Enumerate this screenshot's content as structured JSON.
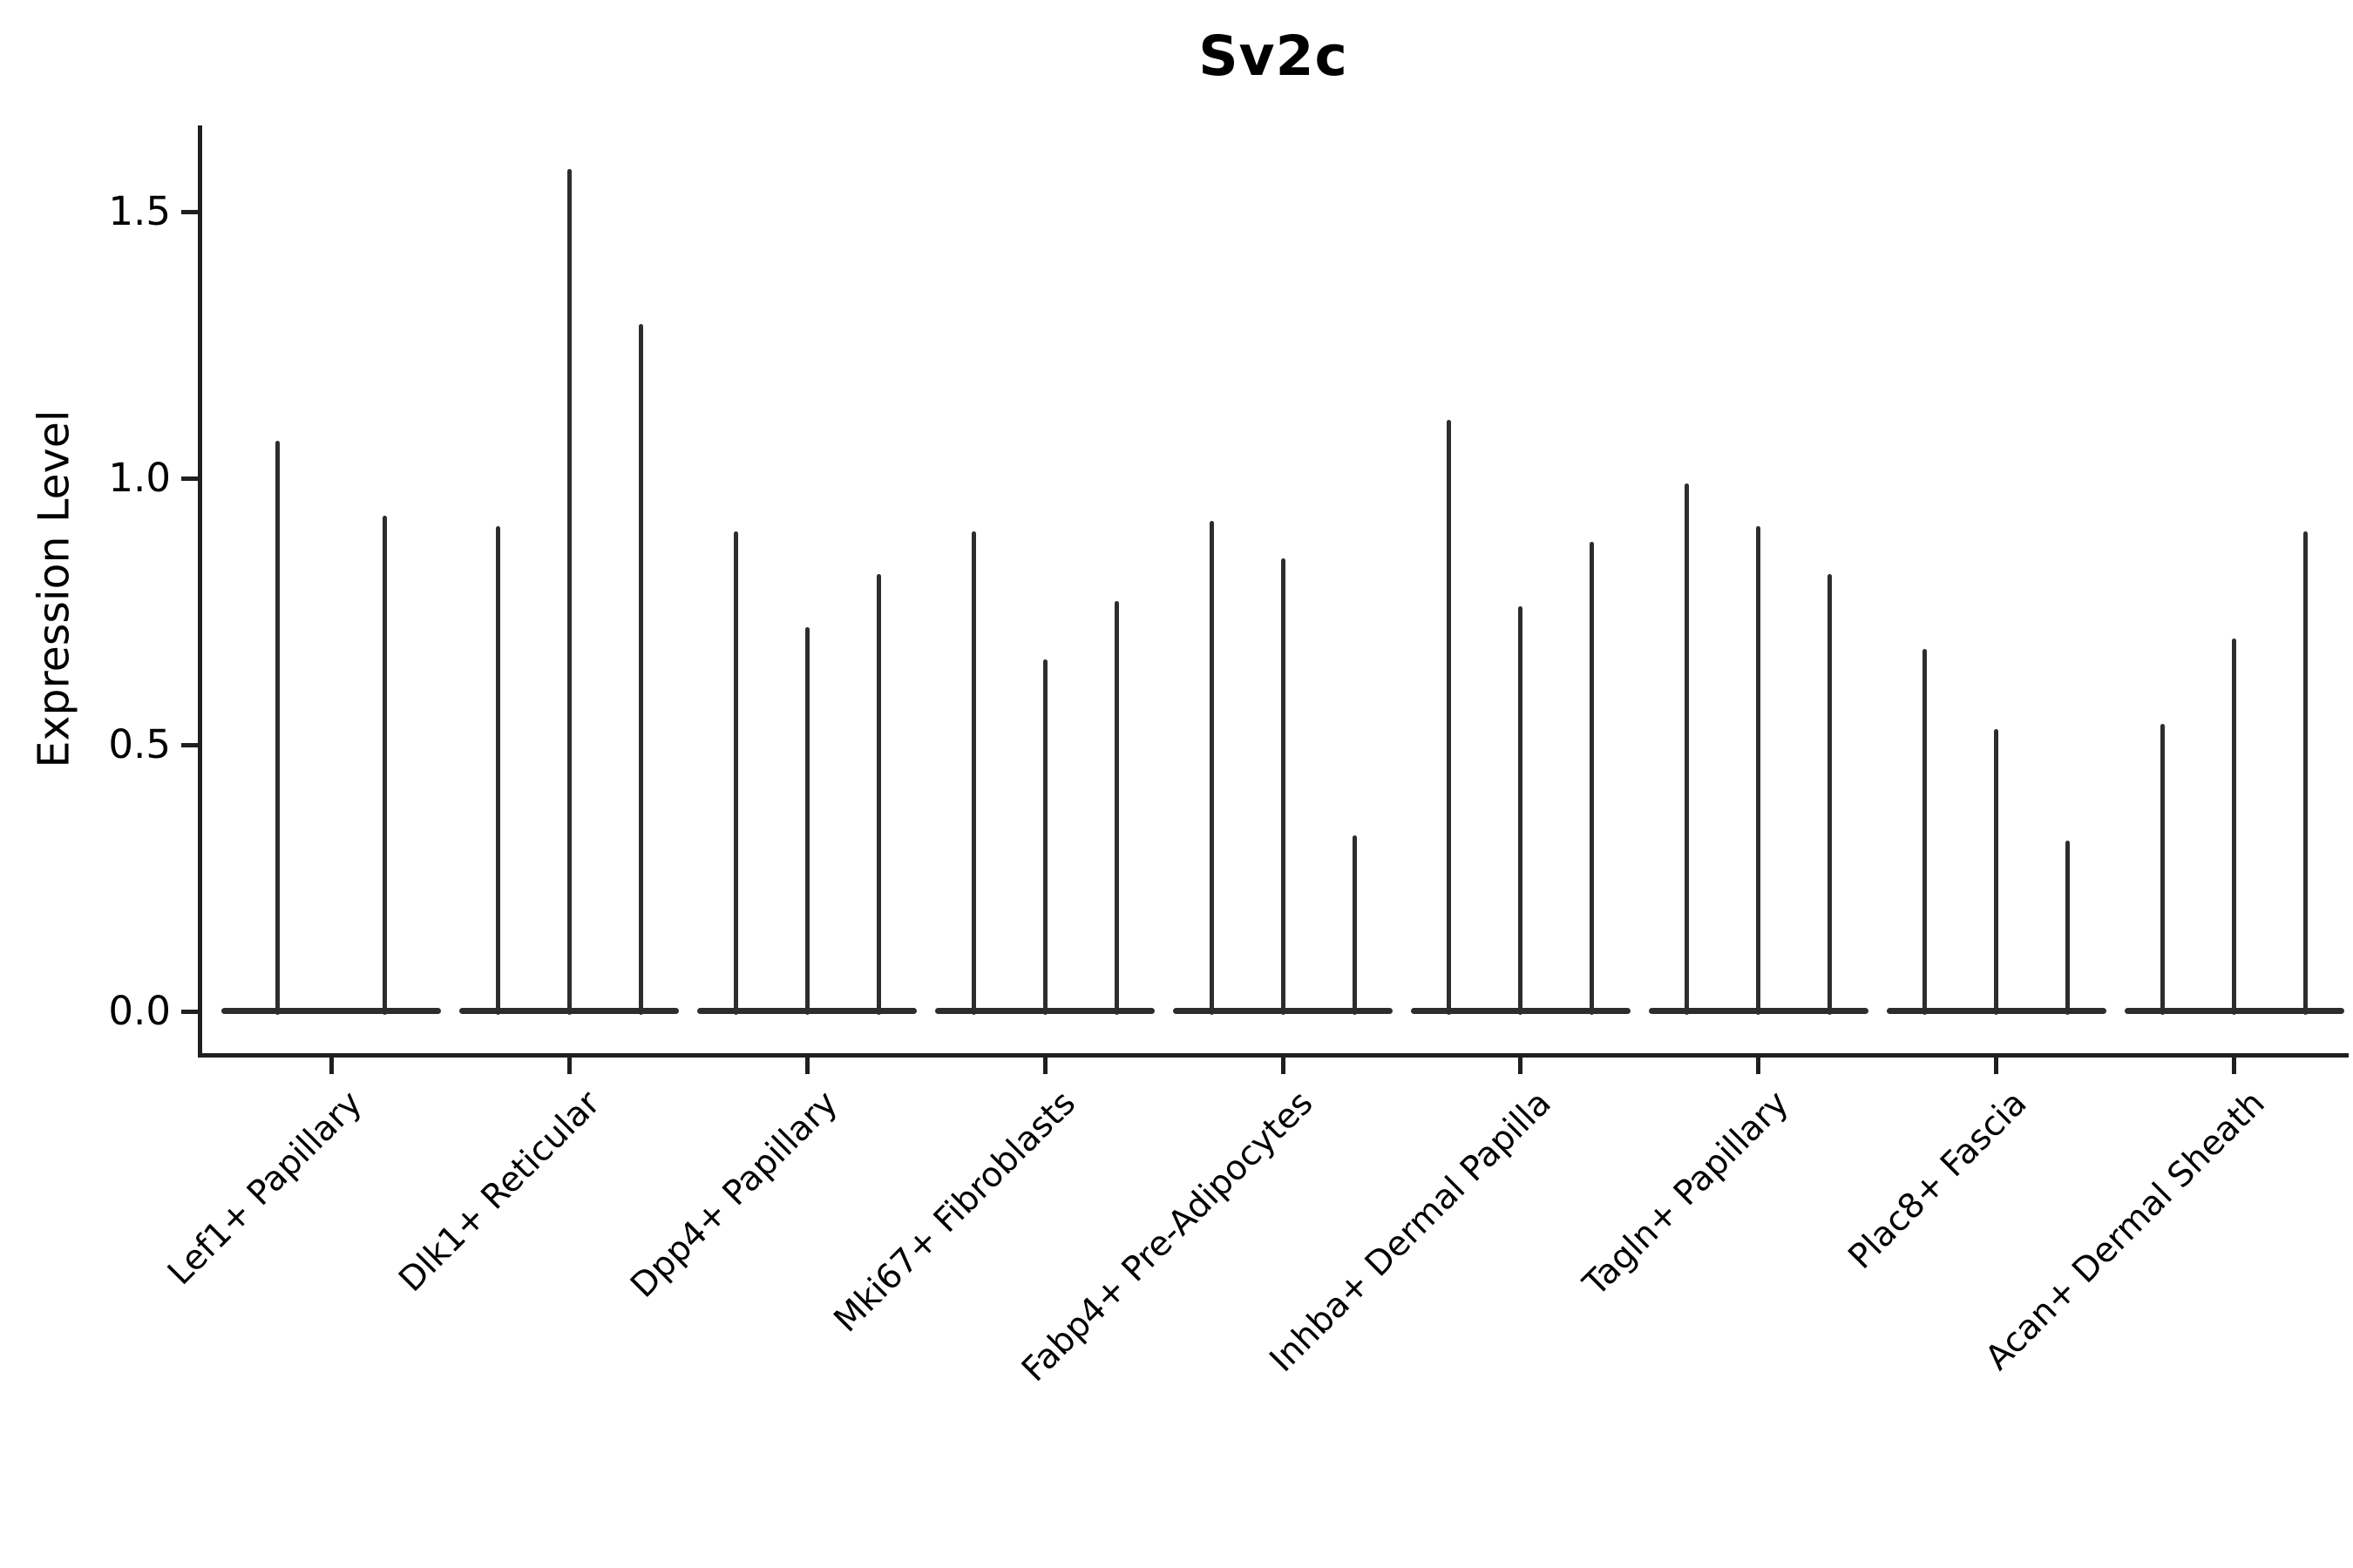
{
  "title": "Sv2c",
  "y_axis": {
    "label": "Expression Level",
    "tick_labels": [
      "0.0",
      "0.5",
      "1.0",
      "1.5"
    ],
    "tick_values": [
      0.0,
      0.5,
      1.0,
      1.5
    ]
  },
  "chart_data": {
    "type": "violin",
    "title": "Sv2c",
    "xlabel": "",
    "ylabel": "Expression Level",
    "ylim": [
      -0.08,
      1.66
    ],
    "yticks": [
      0.0,
      0.5,
      1.0,
      1.5
    ],
    "grid": "off",
    "legend": "none",
    "description": "Single-cell expression violin plot; each cluster on the x-axis contains thin collapsed violins (one per sample) whose bulk sits at 0 with a narrow spike up to the maximum expression value.",
    "categories": [
      "Lef1+ Papillary",
      "Dlk1+ Reticular",
      "Dpp4+ Papillary",
      "Mki67+ Fibroblasts",
      "Fabp4+ Pre-Adipocytes",
      "Inhba+ Dermal Papilla",
      "Tagln+ Papillary",
      "Plac8+ Fascia",
      "Acan+ Dermal Sheath"
    ],
    "series": [
      {
        "category": "Lef1+ Papillary",
        "violin_max_values": [
          1.07,
          0.93
        ]
      },
      {
        "category": "Dlk1+ Reticular",
        "violin_max_values": [
          0.91,
          1.58,
          1.29
        ]
      },
      {
        "category": "Dpp4+ Papillary",
        "violin_max_values": [
          0.9,
          0.72,
          0.82
        ]
      },
      {
        "category": "Mki67+ Fibroblasts",
        "violin_max_values": [
          0.9,
          0.66,
          0.77
        ]
      },
      {
        "category": "Fabp4+ Pre-Adipocytes",
        "violin_max_values": [
          0.92,
          0.85,
          0.33
        ]
      },
      {
        "category": "Inhba+ Dermal Papilla",
        "violin_max_values": [
          1.11,
          0.76,
          0.88
        ]
      },
      {
        "category": "Tagln+ Papillary",
        "violin_max_values": [
          0.99,
          0.91,
          0.82
        ]
      },
      {
        "category": "Plac8+ Fascia",
        "violin_max_values": [
          0.68,
          0.53,
          0.32
        ]
      },
      {
        "category": "Acan+ Dermal Sheath",
        "violin_max_values": [
          0.54,
          0.7,
          0.9
        ]
      }
    ],
    "colors": {
      "line": "#2d2d2d",
      "axis": "#1f1f1f",
      "text": "#000000",
      "background": "#ffffff"
    }
  }
}
